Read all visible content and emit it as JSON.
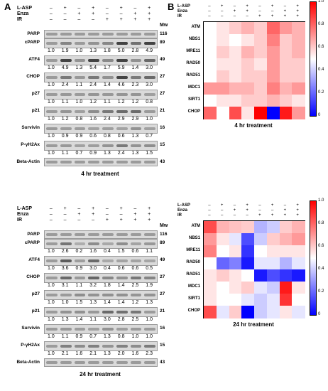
{
  "figure": {
    "panel_a_letter": "A",
    "panel_b_letter": "B"
  },
  "conditions": {
    "labels": [
      "L-ASP",
      "Enza",
      "IR"
    ],
    "mw_label": "Mw",
    "lanes": [
      {
        "l_asp": "–",
        "enza": "–",
        "ir": "–"
      },
      {
        "l_asp": "+",
        "enza": "–",
        "ir": "–"
      },
      {
        "l_asp": "–",
        "enza": "+",
        "ir": "–"
      },
      {
        "l_asp": "+",
        "enza": "+",
        "ir": "–"
      },
      {
        "l_asp": "–",
        "enza": "–",
        "ir": "+"
      },
      {
        "l_asp": "+",
        "enza": "–",
        "ir": "+"
      },
      {
        "l_asp": "–",
        "enza": "+",
        "ir": "+"
      },
      {
        "l_asp": "+",
        "enza": "+",
        "ir": "+"
      }
    ]
  },
  "blots_4hr": {
    "caption": "4 hr treatment",
    "proteins": [
      {
        "name": "PARP",
        "kda": "116",
        "quant": null
      },
      {
        "name": "cPARP",
        "kda": "89",
        "quant": [
          "1.0",
          "1.9",
          "1.0",
          "1.3",
          "1.8",
          "5.0",
          "2.8",
          "4.9"
        ]
      },
      {
        "name": "ATF4",
        "kda": "49",
        "quant": [
          "1.0",
          "4.9",
          "1.3",
          "5.4",
          "1.7",
          "5.9",
          "1.4",
          "3.0"
        ]
      },
      {
        "name": "CHOP",
        "kda": "27",
        "quant": [
          "1.0",
          "2.4",
          "1.1",
          "2.4",
          "1.4",
          "4.6",
          "2.3",
          "3.0"
        ]
      },
      {
        "name": "p27",
        "kda": "27",
        "quant": [
          "1.0",
          "1.1",
          "1.0",
          "1.2",
          "1.1",
          "1.2",
          "1.2",
          "0.8"
        ]
      },
      {
        "name": "p21",
        "kda": "21",
        "quant": [
          "1.0",
          "1.2",
          "0.8",
          "1.6",
          "2.4",
          "2.9",
          "2.9",
          "1.0"
        ]
      },
      {
        "name": "Survivin",
        "kda": "16",
        "quant": [
          "1.0",
          "0.9",
          "0.9",
          "0.6",
          "0.8",
          "0.6",
          "1.3",
          "0.7"
        ]
      },
      {
        "name": "P-γH2Ax",
        "kda": "15",
        "quant": [
          "1.0",
          "1.1",
          "0.7",
          "0.9",
          "1.3",
          "2.4",
          "1.3",
          "1.5"
        ]
      },
      {
        "name": "Beta-Actin",
        "kda": "43",
        "quant": null
      }
    ]
  },
  "blots_24hr": {
    "caption": "24 hr treatment",
    "proteins": [
      {
        "name": "PARP",
        "kda": "116",
        "quant": null
      },
      {
        "name": "cPARP",
        "kda": "89",
        "quant": [
          "1.0",
          "2.6",
          "0.2",
          "1.6",
          "0.4",
          "1.5",
          "0.6",
          "1.1"
        ]
      },
      {
        "name": "ATF4",
        "kda": "49",
        "quant": [
          "1.0",
          "3.6",
          "0.9",
          "3.0",
          "0.4",
          "0.6",
          "0.6",
          "0.5"
        ]
      },
      {
        "name": "CHOP",
        "kda": "27",
        "quant": [
          "1.0",
          "3.1",
          "1.1",
          "3.2",
          "1.8",
          "1.4",
          "2.5",
          "1.9"
        ]
      },
      {
        "name": "p27",
        "kda": "27",
        "quant": [
          "1.0",
          "1.0",
          "1.5",
          "1.3",
          "1.4",
          "1.4",
          "1.2",
          "1.3"
        ]
      },
      {
        "name": "p21",
        "kda": "21",
        "quant": [
          "1.0",
          "1.3",
          "1.4",
          "1.1",
          "3.0",
          "2.8",
          "2.5",
          "1.0"
        ]
      },
      {
        "name": "Survivin",
        "kda": "16",
        "quant": [
          "1.0",
          "1.1",
          "0.9",
          "0.7",
          "1.3",
          "0.8",
          "1.0",
          "1.0"
        ]
      },
      {
        "name": "P-γH2Ax",
        "kda": "15",
        "quant": [
          "1.0",
          "2.1",
          "1.6",
          "2.1",
          "1.3",
          "2.0",
          "1.6",
          "2.3"
        ]
      },
      {
        "name": "Beta-Actin",
        "kda": "43",
        "quant": null
      }
    ]
  },
  "heatmap_4hr": {
    "caption": "4 hr treatment",
    "rows": [
      "ATM",
      "NBS1",
      "MRE11",
      "RAD50",
      "RAD51",
      "MDC1",
      "SIRT1",
      "CHOP"
    ],
    "values": [
      [
        0.5,
        0.55,
        0.6,
        0.65,
        0.6,
        0.8,
        0.7,
        0.65
      ],
      [
        0.5,
        0.55,
        0.5,
        0.55,
        0.6,
        0.75,
        0.6,
        0.65
      ],
      [
        0.5,
        0.6,
        0.55,
        0.65,
        0.6,
        0.7,
        0.6,
        0.65
      ],
      [
        0.5,
        0.55,
        0.55,
        0.6,
        0.55,
        0.7,
        0.6,
        0.6
      ],
      [
        0.5,
        0.6,
        0.55,
        0.6,
        0.6,
        0.7,
        0.6,
        0.6
      ],
      [
        0.7,
        0.7,
        0.65,
        0.65,
        0.6,
        0.75,
        0.65,
        0.7
      ],
      [
        0.5,
        0.55,
        0.55,
        0.6,
        0.6,
        0.65,
        0.6,
        0.55
      ],
      [
        0.8,
        0.5,
        0.85,
        0.55,
        1.0,
        0.0,
        0.95,
        0.7
      ]
    ]
  },
  "heatmap_24hr": {
    "caption": "24 hr treatment",
    "rows": [
      "ATM",
      "NBS1",
      "MRE11",
      "RAD50",
      "RAD51",
      "MDC1",
      "SIRT1",
      "CHOP"
    ],
    "values": [
      [
        0.85,
        0.65,
        0.62,
        0.6,
        0.35,
        0.4,
        0.6,
        0.65
      ],
      [
        0.7,
        0.55,
        0.45,
        0.15,
        0.4,
        0.6,
        0.65,
        0.7
      ],
      [
        0.75,
        0.5,
        0.55,
        0.1,
        0.5,
        0.55,
        0.55,
        0.55
      ],
      [
        0.5,
        0.2,
        0.25,
        0.05,
        0.45,
        0.45,
        0.35,
        0.45
      ],
      [
        0.55,
        0.6,
        0.55,
        0.5,
        0.05,
        0.15,
        0.1,
        0.05
      ],
      [
        0.55,
        0.5,
        0.55,
        0.6,
        0.45,
        0.4,
        0.95,
        0.55
      ],
      [
        0.55,
        0.5,
        0.5,
        0.45,
        0.4,
        0.45,
        0.9,
        0.5
      ],
      [
        0.85,
        0.45,
        0.6,
        0.0,
        0.4,
        0.45,
        0.55,
        0.45
      ]
    ]
  },
  "colorbar": {
    "ticks": [
      "1.0",
      "0.8",
      "0.6",
      "0.4",
      "0.2",
      "0"
    ]
  }
}
